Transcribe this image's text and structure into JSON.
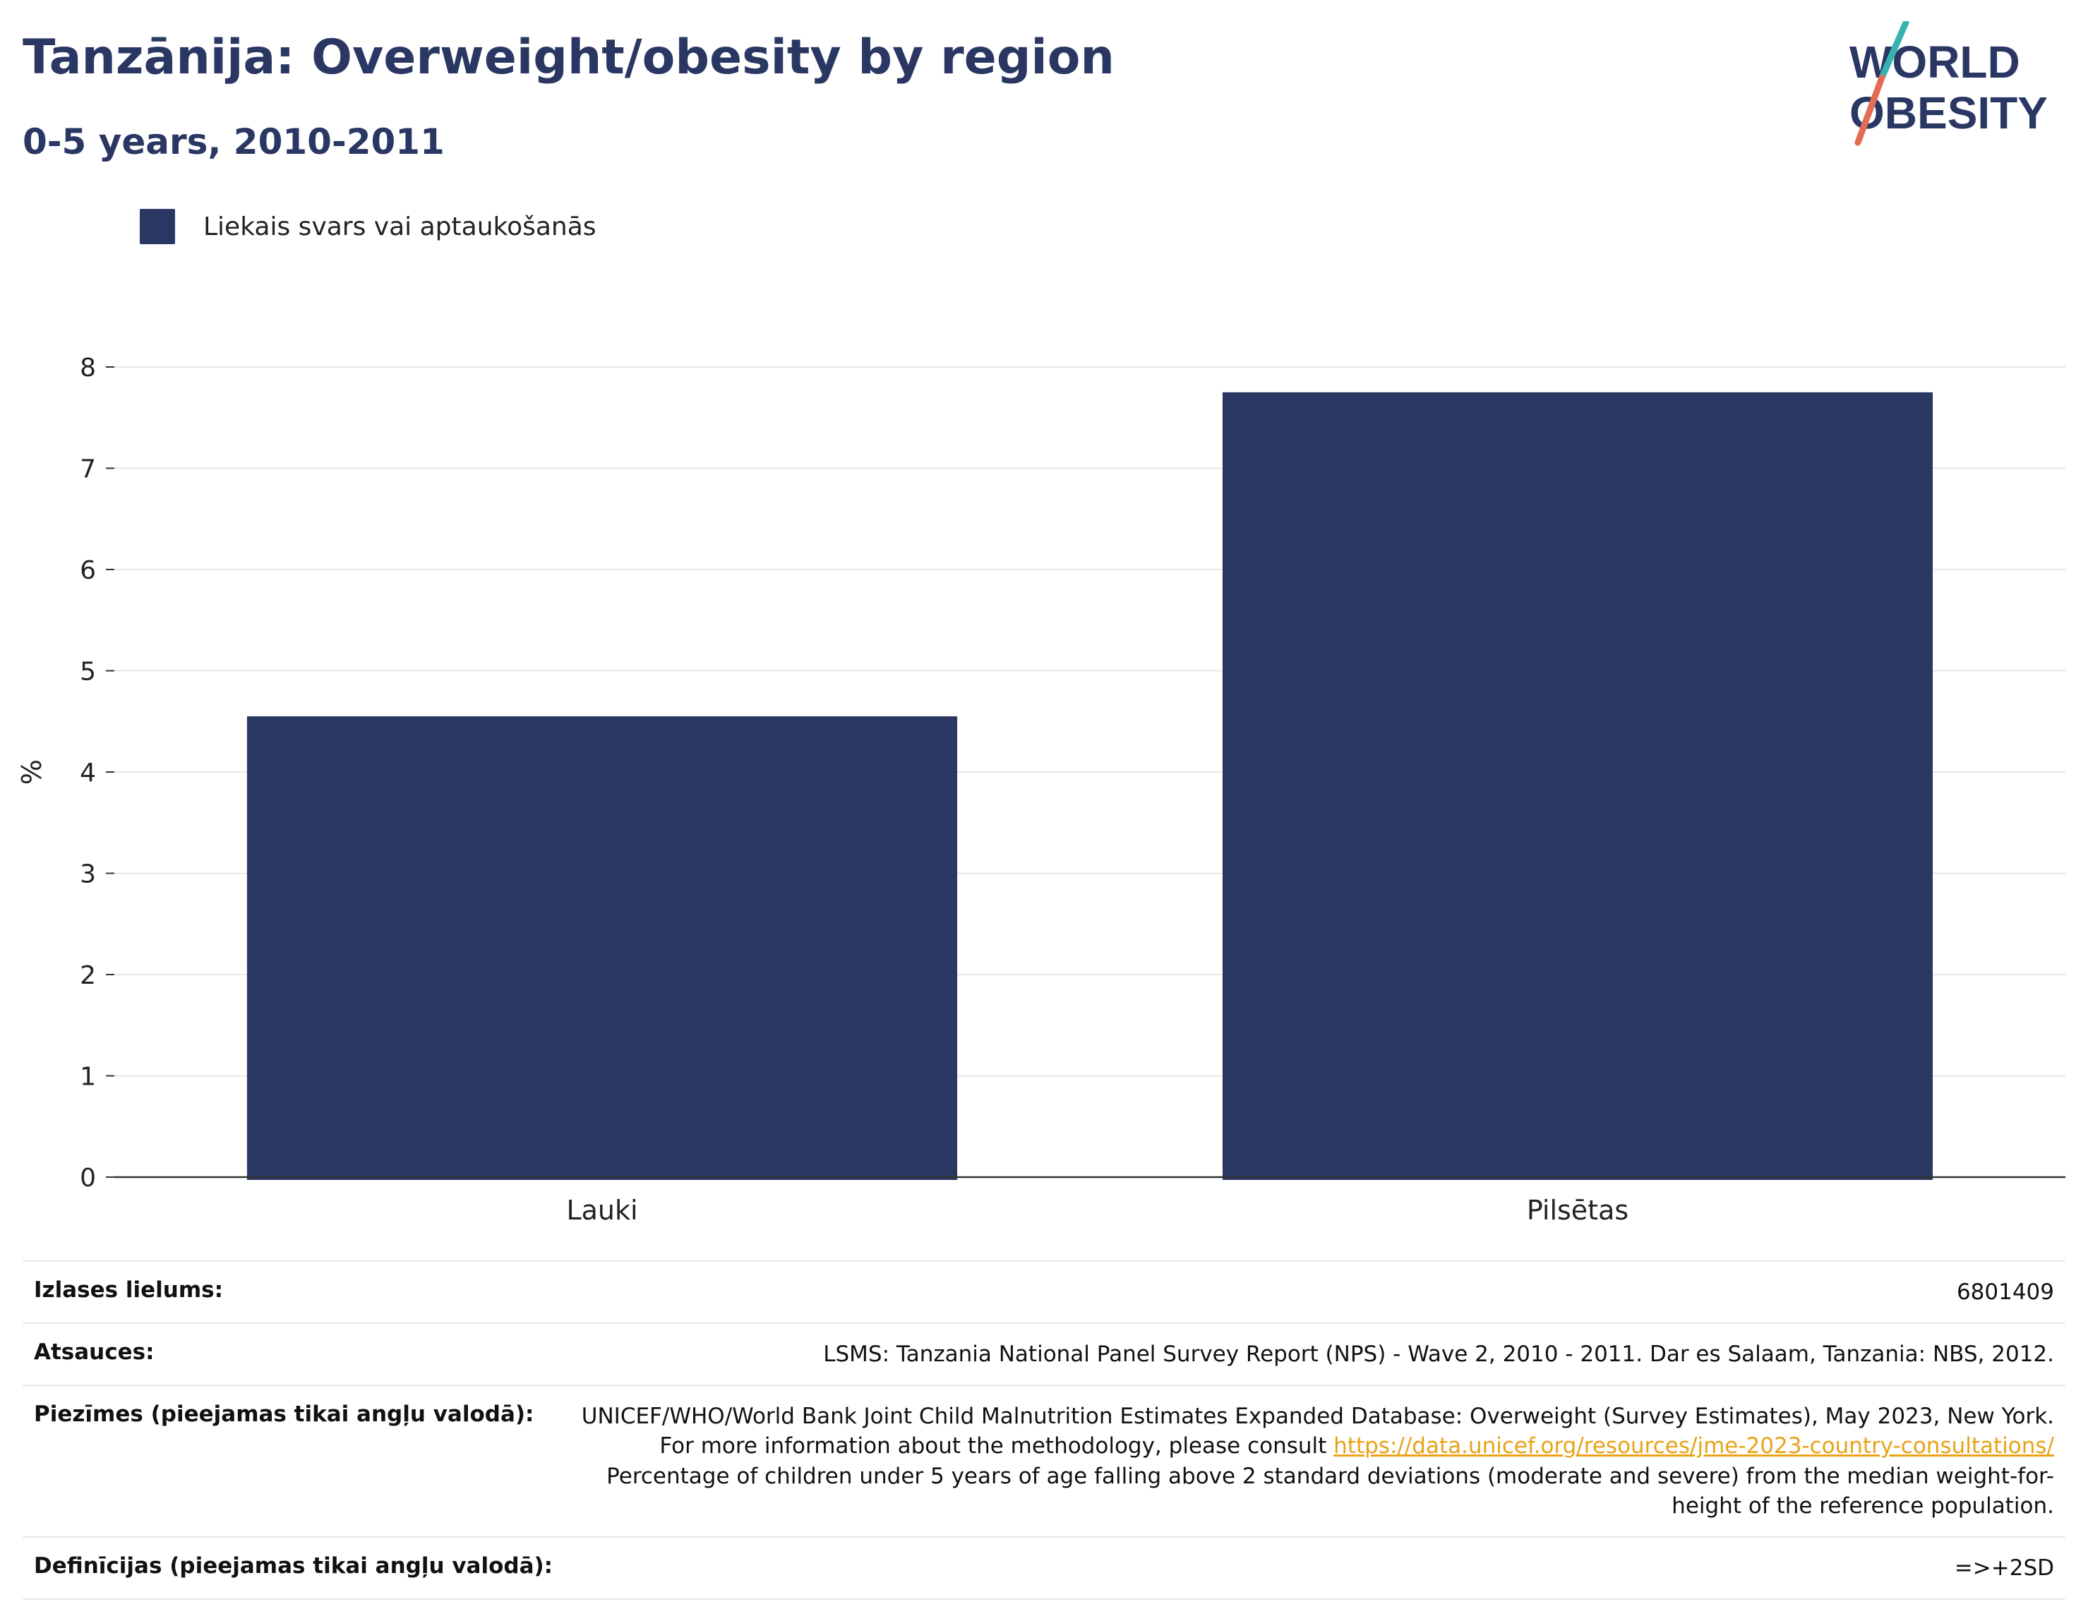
{
  "header": {
    "title": "Tanzānija: Overweight/obesity by region",
    "subtitle": "0-5 years, 2010-2011"
  },
  "logo": {
    "line1": "WORLD",
    "line2": "OBESITY",
    "colors": {
      "text": "#2a3763",
      "slash_top": "#35b3b1",
      "slash_bottom": "#e36c55"
    }
  },
  "legend": {
    "label": "Liekais svars vai aptaukošanās",
    "color": "#2a3763"
  },
  "chart_data": {
    "type": "bar",
    "categories": [
      "Lauki",
      "Pilsētas"
    ],
    "series": [
      {
        "name": "Liekais svars vai aptaukošanās",
        "values": [
          4.55,
          7.75
        ],
        "color": "#2a3763"
      }
    ],
    "ylabel": "%",
    "ylim": [
      0,
      8
    ],
    "yticks": [
      0,
      1,
      2,
      3,
      4,
      5,
      6,
      7,
      8
    ],
    "grid": true,
    "legend_position": "top-left"
  },
  "meta": {
    "sample_size": {
      "label": "Izlases lielums:",
      "value": "6801409"
    },
    "sources": {
      "label": "Atsauces:",
      "value": "LSMS: Tanzania National Panel Survey Report (NPS) - Wave 2, 2010 - 2011. Dar es Salaam, Tanzania: NBS, 2012."
    },
    "notes": {
      "label": "Piezīmes (pieejamas tikai angļu valodā):",
      "text_before": "UNICEF/WHO/World Bank Joint Child Malnutrition Estimates Expanded Database: Overweight (Survey Estimates), May 2023, New York. For more information about the methodology, please consult ",
      "link": "https://data.unicef.org/resources/jme-2023-country-consultations/",
      "text_after": " Percentage of children under 5 years of age falling above 2 standard deviations (moderate and severe) from the median weight-for-height of the reference population."
    },
    "definitions": {
      "label": "Definīcijas (pieejamas tikai angļu valodā):",
      "value": "=>+2SD"
    }
  }
}
